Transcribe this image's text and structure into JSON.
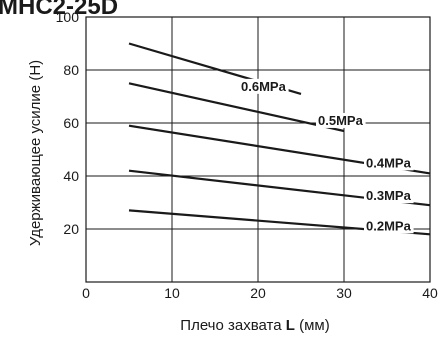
{
  "title": "MHC2-25D",
  "colors": {
    "background": "#ffffff",
    "line": "#1a1a1a"
  },
  "chart_data": {
    "type": "line",
    "title": "MHC2-25D",
    "xlabel_prefix": "Плечо захвата ",
    "xlabel_var": "L",
    "xlabel_suffix": " (мм)",
    "ylabel": "Удерживающее усилие (Н)",
    "xlim": [
      0,
      40
    ],
    "ylim": [
      0,
      100
    ],
    "xticks": [
      0,
      10,
      20,
      30,
      40
    ],
    "yticks": [
      20,
      40,
      60,
      80,
      100
    ],
    "grid": true,
    "legend": "inline labels at line ends",
    "series": [
      {
        "name": "0.6MPa",
        "x": [
          5,
          25
        ],
        "y": [
          90,
          71
        ]
      },
      {
        "name": "0.5MPa",
        "x": [
          5,
          30
        ],
        "y": [
          75,
          57
        ]
      },
      {
        "name": "0.4MPa",
        "x": [
          5,
          40
        ],
        "y": [
          59,
          41
        ]
      },
      {
        "name": "0.3MPa",
        "x": [
          5,
          40
        ],
        "y": [
          42,
          29
        ]
      },
      {
        "name": "0.2MPa",
        "x": [
          5,
          40
        ],
        "y": [
          27,
          18
        ]
      }
    ]
  }
}
